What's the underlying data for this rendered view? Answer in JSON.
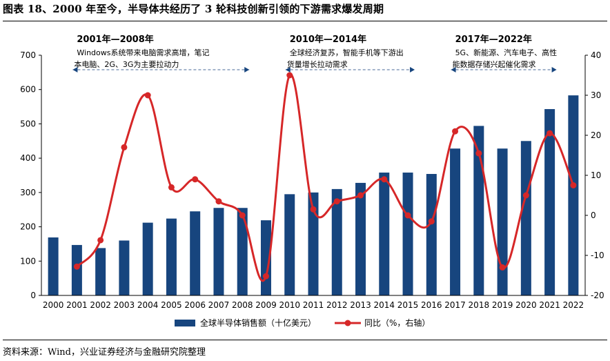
{
  "figure": {
    "title": "图表 18、2000 年至今，半导体共经历了 3 轮科技创新引领的下游需求爆发周期",
    "source": "资料来源：Wind，兴业证券经济与金融研究院整理"
  },
  "chart_data": {
    "type": "bar",
    "categories": [
      "2000",
      "2001",
      "2002",
      "2003",
      "2004",
      "2005",
      "2006",
      "2007",
      "2008",
      "2009",
      "2010",
      "2011",
      "2012",
      "2013",
      "2014",
      "2015",
      "2016",
      "2017",
      "2018",
      "2019",
      "2020",
      "2021",
      "2022"
    ],
    "series": [
      {
        "name": "全球半导体销售额（十亿美元）",
        "type": "bar",
        "axis": "left",
        "color": "#17457e",
        "values": [
          169,
          147,
          138,
          160,
          212,
          224,
          245,
          255,
          255,
          219,
          295,
          300,
          310,
          328,
          358,
          358,
          354,
          428,
          494,
          428,
          450,
          543,
          583
        ]
      },
      {
        "name": "同比（%，右轴）",
        "type": "line",
        "axis": "right",
        "color": "#d62728",
        "values": [
          null,
          -12.8,
          -6.2,
          17,
          30,
          7,
          9,
          3.5,
          0,
          -15.2,
          35,
          1.5,
          3.5,
          5,
          9,
          0,
          -1.5,
          21,
          15.5,
          -13,
          5,
          20.5,
          7.5
        ]
      }
    ],
    "y_left": {
      "min": 0,
      "max": 700,
      "ticks": [
        0,
        100,
        200,
        300,
        400,
        500,
        600,
        700
      ]
    },
    "y_right": {
      "min": -20,
      "max": 40,
      "ticks": [
        "-20",
        "-10",
        "0",
        "10",
        "20",
        "30",
        "40"
      ]
    },
    "legend": {
      "placement": "bottom-center"
    },
    "annotations": [
      {
        "title": "2001年—2008年",
        "lines": [
          "Windows系统带来电脑需求高增，笔记",
          "本电脑、2G、3G为主要拉动力"
        ],
        "from": "2001",
        "to": "2008"
      },
      {
        "title": "2010年—2014年",
        "lines": [
          "全球经济复苏，智能手机等下游出",
          "货量增长拉动需求"
        ],
        "from": "2010",
        "to": "2015"
      },
      {
        "title": "2017年—2022年",
        "lines": [
          "5G、新能源、汽车电子、高性",
          "能数据存储兴起催化需求"
        ],
        "from": "2017",
        "to": "2021"
      }
    ]
  }
}
